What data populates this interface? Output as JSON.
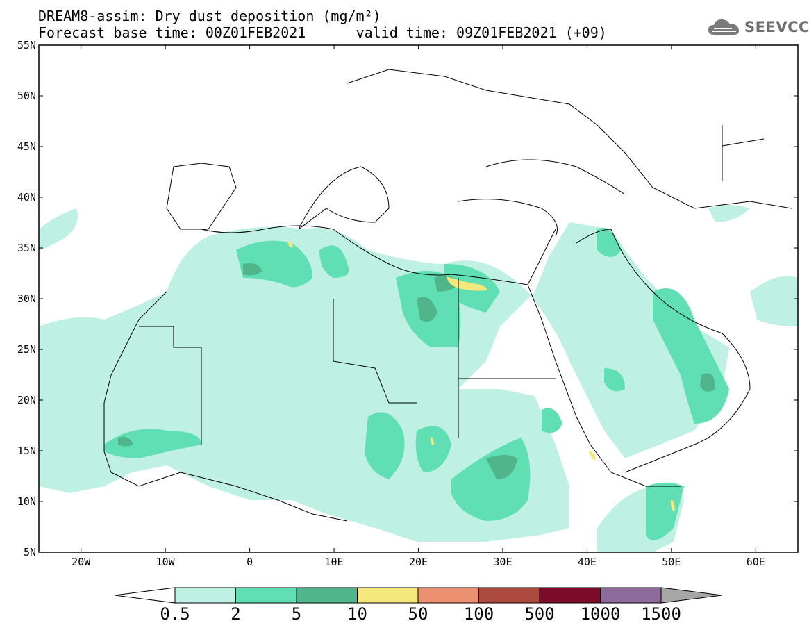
{
  "title_line1": "DREAM8-assim: Dry dust deposition (mg/m²)",
  "title_line2_base": "Forecast base time: 00Z01FEB2021",
  "title_line2_valid": "valid time: 09Z01FEB2021 (+09)",
  "brand": {
    "name": "SEEVCCC",
    "icon": "cloud-icon"
  },
  "map": {
    "lon_range": [
      -25,
      65
    ],
    "lat_range": [
      5,
      55
    ],
    "lat_ticks": [
      "55N",
      "50N",
      "45N",
      "40N",
      "35N",
      "30N",
      "25N",
      "20N",
      "15N",
      "10N",
      "5N"
    ],
    "lon_ticks": [
      "20W",
      "10W",
      "0",
      "10E",
      "20E",
      "30E",
      "40E",
      "50E",
      "60E"
    ],
    "lat_values": [
      55,
      50,
      45,
      40,
      35,
      30,
      25,
      20,
      15,
      10,
      5
    ],
    "lon_values": [
      -20,
      -10,
      0,
      10,
      20,
      30,
      40,
      50,
      60
    ]
  },
  "colorbar": {
    "labels": [
      "0.5",
      "2",
      "5",
      "10",
      "50",
      "100",
      "500",
      "1000",
      "1500"
    ],
    "colors": [
      "#bff0e4",
      "#60dfb5",
      "#50b58b",
      "#f4e87c",
      "#eb9170",
      "#ab4a3e",
      "#7c0b27",
      "#8c6b9a",
      "#a7a7a7"
    ]
  }
}
